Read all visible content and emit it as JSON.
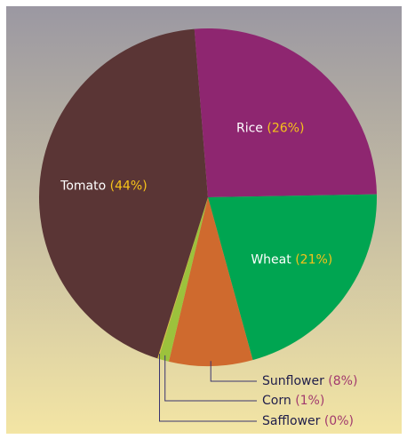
{
  "chart_data": {
    "type": "pie",
    "title": "",
    "slices": [
      {
        "label": "Tomato",
        "value": 44,
        "pct_text": "(44%)",
        "color": "#5a3535"
      },
      {
        "label": "Rice",
        "value": 26,
        "pct_text": "(26%)",
        "color": "#8e2670"
      },
      {
        "label": "Wheat",
        "value": 21,
        "pct_text": "(21%)",
        "color": "#00a551"
      },
      {
        "label": "Sunflower",
        "value": 8,
        "pct_text": "(8%)",
        "color": "#cf6a2e"
      },
      {
        "label": "Corn",
        "value": 1,
        "pct_text": "(1%)",
        "color": "#9cc23c"
      },
      {
        "label": "Safflower",
        "value": 0,
        "pct_text": "(0%)",
        "color": "#d6c24a"
      }
    ],
    "label_text_color": "#ffffff",
    "percent_color_inside": "#f7c319",
    "percent_color_outside": "#a23a6e",
    "outside_label_color": "#1f1d4a",
    "leader_line_color": "#3a3470",
    "background_gradient": [
      "#9b98a2",
      "#f3e5a4"
    ]
  }
}
